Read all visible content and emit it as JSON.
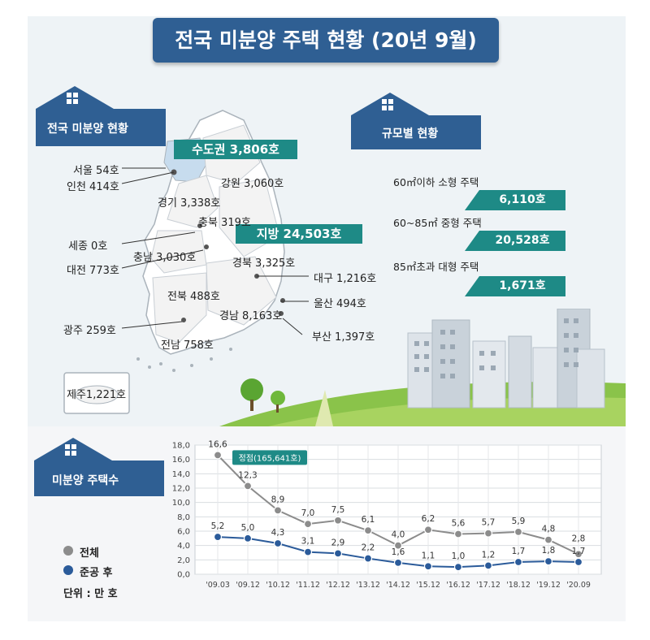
{
  "title": "전국 미분양 주택 현황 (20년 9월)",
  "map_section": {
    "tab_label": "전국 미분양 현황",
    "capital_area_label": "수도권 3,806호",
    "regional_label": "지방 24,503호",
    "regions": [
      {
        "name": "seoul",
        "label": "서울  54호"
      },
      {
        "name": "incheon",
        "label": "인천 414호"
      },
      {
        "name": "gyeonggi",
        "label": "경기 3,338호"
      },
      {
        "name": "gangwon",
        "label": "강원 3,060호"
      },
      {
        "name": "chungbuk",
        "label": "충북 319호"
      },
      {
        "name": "sejong",
        "label": "세종 0호"
      },
      {
        "name": "chungnam",
        "label": "충남 3,030호"
      },
      {
        "name": "daejeon",
        "label": "대전 773호"
      },
      {
        "name": "gyeongbuk",
        "label": "경북 3,325호"
      },
      {
        "name": "daegu",
        "label": "대구 1,216호"
      },
      {
        "name": "jeonbuk",
        "label": "전북 488호"
      },
      {
        "name": "ulsan",
        "label": "울산 494호"
      },
      {
        "name": "gyeongnam",
        "label": "경남 8,163호"
      },
      {
        "name": "gwangju",
        "label": "광주 259호"
      },
      {
        "name": "busan",
        "label": "부산 1,397호"
      },
      {
        "name": "jeonnam",
        "label": "전남 758호"
      },
      {
        "name": "jeju",
        "label": "제주1,221호"
      }
    ]
  },
  "size_section": {
    "tab_label": "규모별 현황",
    "items": [
      {
        "label": "60㎡이하 소형 주택",
        "value": "6,110호"
      },
      {
        "label": "60~85㎡ 중형 주택",
        "value": "20,528호"
      },
      {
        "label": "85㎡초과 대형 주택",
        "value": "1,671호"
      }
    ]
  },
  "chart_section": {
    "tab_label": "미분양 주택수",
    "legend": [
      {
        "label": "전체",
        "color": "#8c8c8c"
      },
      {
        "label": "준공 후",
        "color": "#2b5b9a"
      }
    ],
    "unit_label": "단위 : 만 호",
    "peak_label": "정점(165,641호)"
  },
  "chart_data": {
    "type": "line",
    "categories": [
      "'09.03",
      "'09.12",
      "'10.12",
      "'11.12",
      "'12.12",
      "'13.12",
      "'14.12",
      "'15.12",
      "'16.12",
      "'17.12",
      "'18.12",
      "'19.12",
      "'20.09"
    ],
    "series": [
      {
        "name": "전체",
        "values": [
          16.6,
          12.3,
          8.9,
          7.0,
          7.5,
          6.1,
          4.0,
          6.2,
          5.6,
          5.7,
          5.9,
          4.8,
          2.8
        ],
        "labels": [
          "16,6",
          "12,3",
          "8,9",
          "7,0",
          "7,5",
          "6,1",
          "4,0",
          "6,2",
          "5,6",
          "5,7",
          "5,9",
          "4,8",
          "2,8"
        ],
        "color": "#8c8c8c"
      },
      {
        "name": "준공 후",
        "values": [
          5.2,
          5.0,
          4.3,
          3.1,
          2.9,
          2.2,
          1.6,
          1.1,
          1.0,
          1.2,
          1.7,
          1.8,
          1.7
        ],
        "labels": [
          "5,2",
          "5,0",
          "4,3",
          "3,1",
          "2,9",
          "2,2",
          "1,6",
          "1,1",
          "1,0",
          "1,2",
          "1,7",
          "1,8",
          "1,7"
        ],
        "color": "#2b5b9a"
      }
    ],
    "ylim": [
      0,
      18
    ],
    "yticks": [
      0,
      2,
      4,
      6,
      8,
      10,
      12,
      14,
      16,
      18
    ],
    "ytick_labels": [
      "0,0",
      "2,0",
      "4,0",
      "6,0",
      "8,0",
      "10,0",
      "12,0",
      "14,0",
      "16,0",
      "18,0"
    ],
    "grid": true
  }
}
